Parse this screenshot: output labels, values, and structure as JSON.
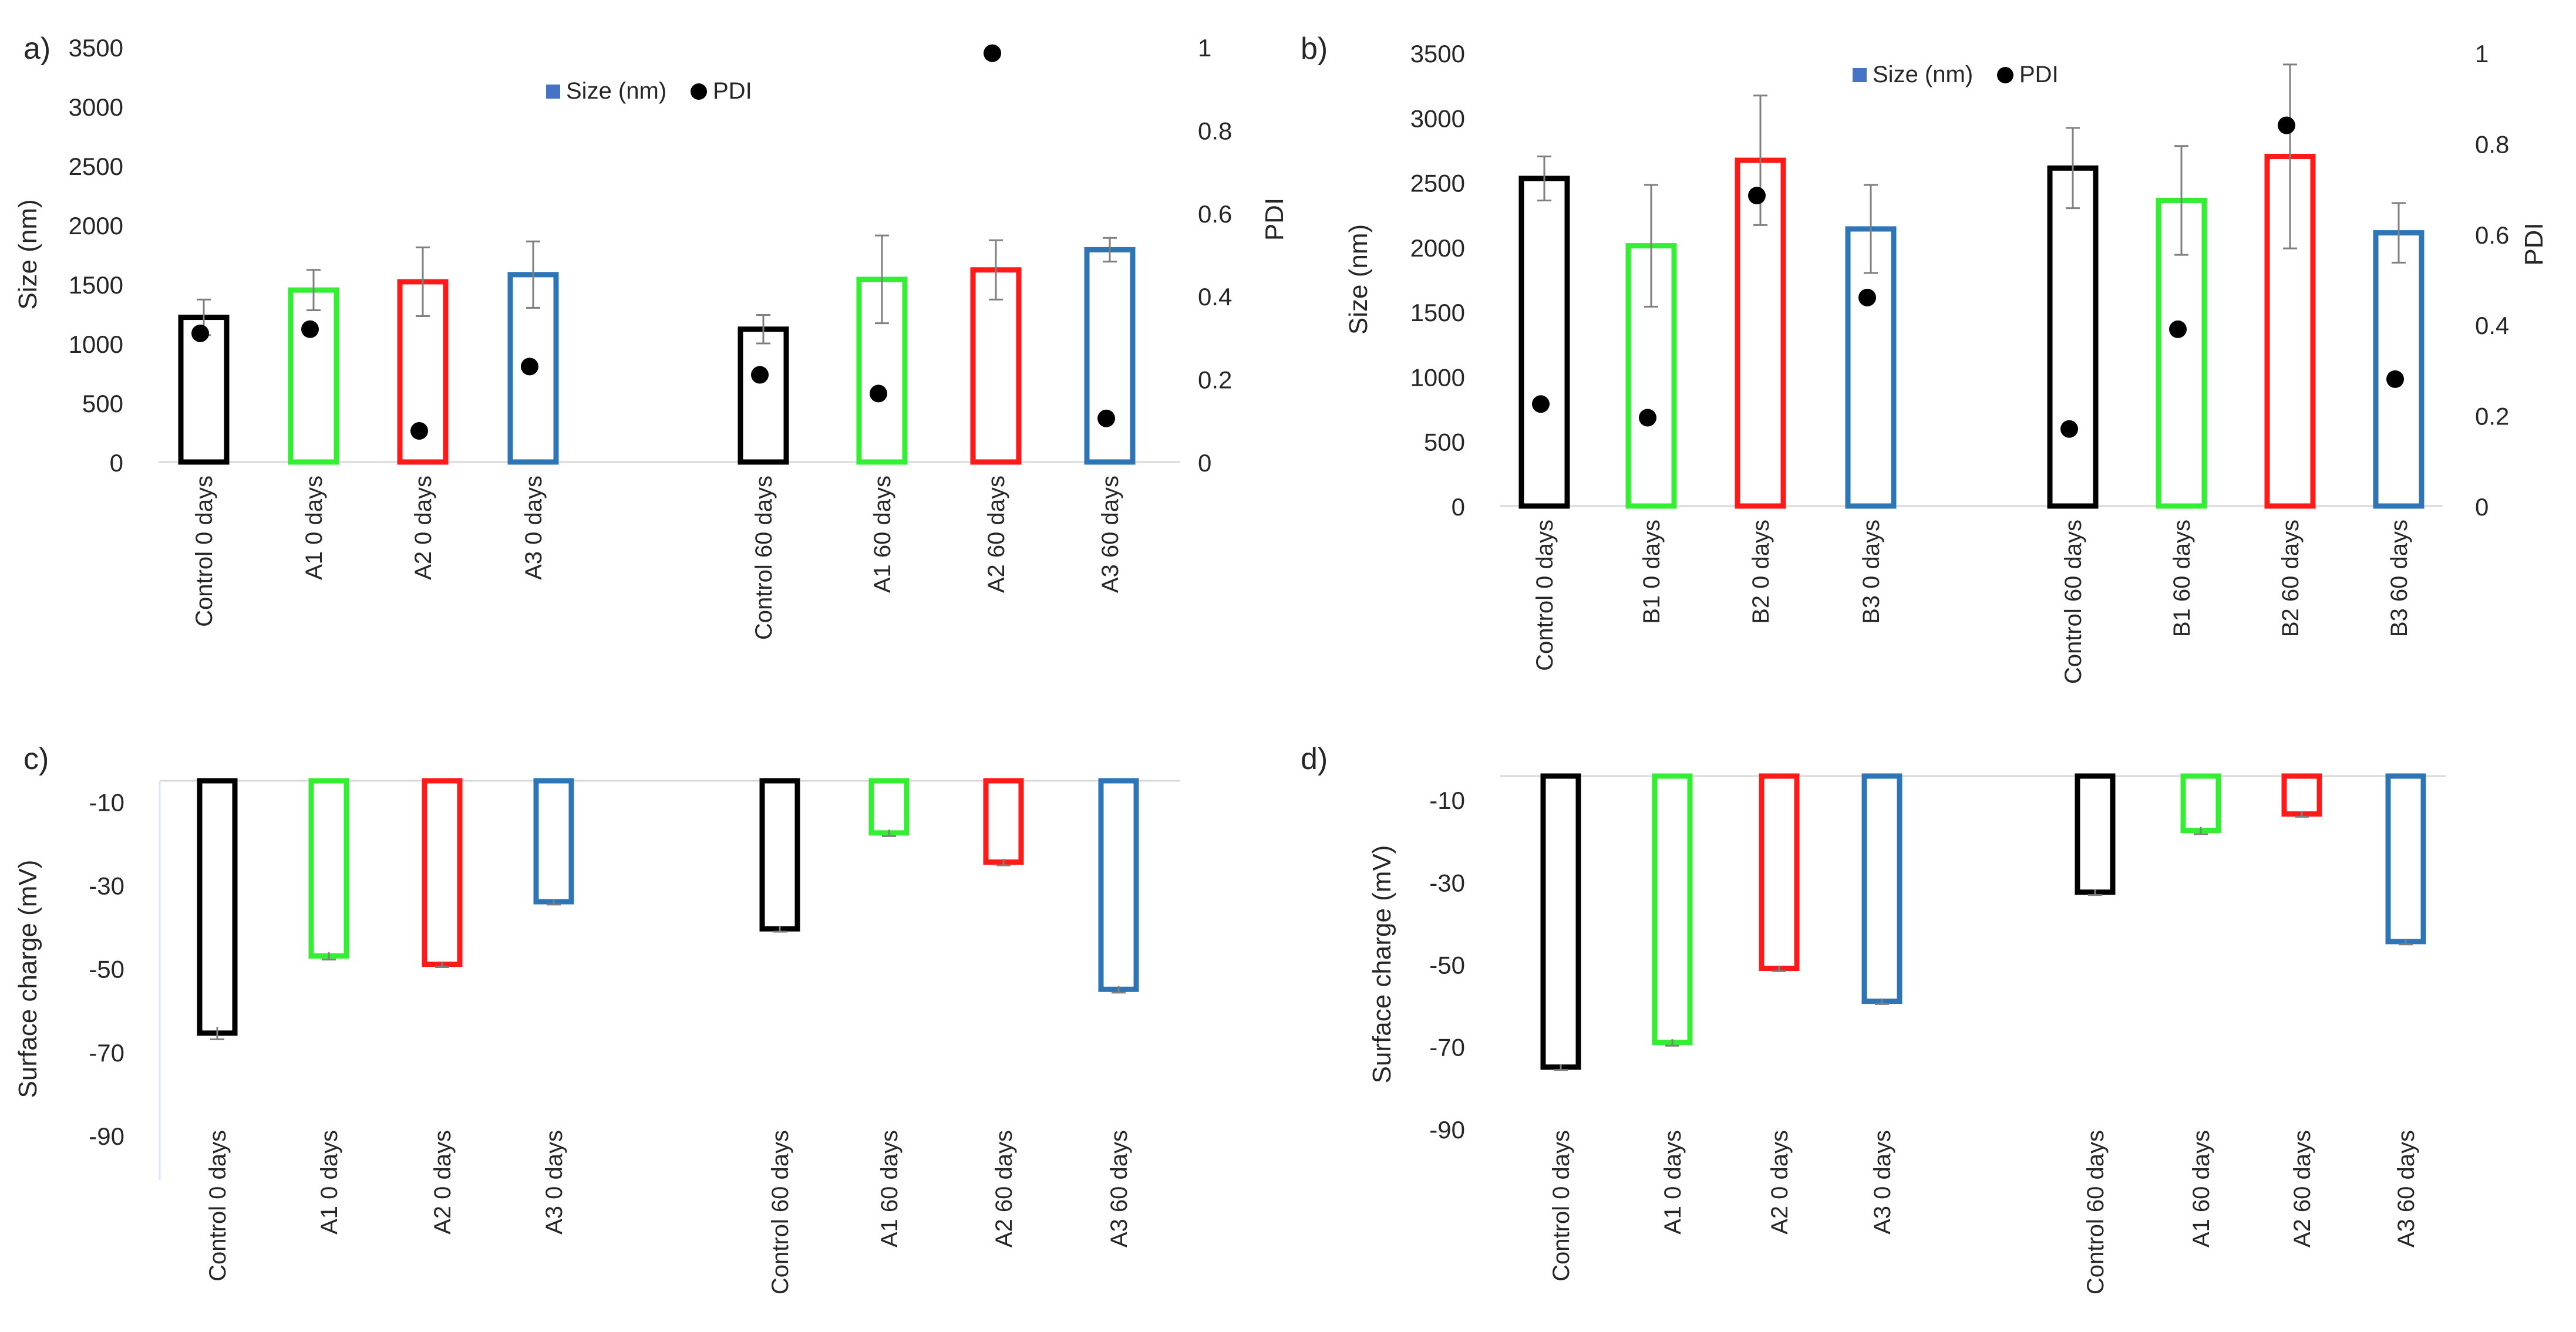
{
  "chart_data": [
    {
      "panel_label": "a)",
      "type": "bar",
      "title": "",
      "xlabel": "",
      "ylabel": "Size (nm)",
      "y2label": "PDI",
      "ylim": [
        0,
        3500
      ],
      "y2lim": [
        0,
        1
      ],
      "yticks": [
        "0",
        "500",
        "1000",
        "1500",
        "2000",
        "2500",
        "3000",
        "3500"
      ],
      "y2ticks": [
        "0",
        "0.2",
        "0.4",
        "0.6",
        "0.8",
        "1"
      ],
      "legend": {
        "position": "top-center",
        "entries": [
          "Size (nm)",
          "PDI"
        ]
      },
      "categories": [
        "Control 0 days",
        "A1 0 days",
        "A2 0  days",
        "A3 0  days",
        "Control 60  days",
        "A1 60  days",
        "A2 60  days",
        "A3 60  days"
      ],
      "colors": [
        "#000000",
        "#33ee33",
        "#ff1a1a",
        "#2e75b6",
        "#000000",
        "#33ee33",
        "#ff1a1a",
        "#2e75b6"
      ],
      "series": [
        {
          "name": "Size (nm)",
          "values": [
            1220,
            1450,
            1520,
            1580,
            1120,
            1540,
            1620,
            1790
          ],
          "errors": [
            150,
            170,
            290,
            280,
            120,
            370,
            250,
            100
          ]
        },
        {
          "name": "PDI",
          "values": [
            0.31,
            0.32,
            0.075,
            0.23,
            0.21,
            0.165,
            0.985,
            0.105
          ]
        }
      ]
    },
    {
      "panel_label": "b)",
      "type": "bar",
      "title": "",
      "xlabel": "",
      "ylabel": "Size (nm)",
      "y2label": "PDI",
      "ylim": [
        0,
        3500
      ],
      "y2lim": [
        0,
        1
      ],
      "yticks": [
        "0",
        "500",
        "1000",
        "1500",
        "2000",
        "2500",
        "3000",
        "3500"
      ],
      "y2ticks": [
        "0",
        "0.2",
        "0.4",
        "0.6",
        "0.8",
        "1"
      ],
      "legend": {
        "position": "top-center",
        "entries": [
          "Size (nm)",
          "PDI"
        ]
      },
      "categories": [
        "Control 0 days",
        "B1 0 days",
        "B2 0 days",
        "B3 0 days",
        "Control 60 days",
        "B1 60 days",
        "B2 60 days",
        "B3 60 days"
      ],
      "colors": [
        "#000000",
        "#33ee33",
        "#ff1a1a",
        "#2e75b6",
        "#000000",
        "#33ee33",
        "#ff1a1a",
        "#2e75b6"
      ],
      "series": [
        {
          "name": "Size (nm)",
          "values": [
            2530,
            2010,
            2670,
            2140,
            2610,
            2360,
            2700,
            2110
          ],
          "errors": [
            170,
            470,
            500,
            340,
            310,
            420,
            710,
            230
          ]
        },
        {
          "name": "PDI",
          "values": [
            0.225,
            0.195,
            0.685,
            0.46,
            0.17,
            0.39,
            0.84,
            0.28
          ]
        }
      ]
    },
    {
      "panel_label": "c)",
      "type": "bar",
      "title": "",
      "xlabel": "",
      "ylabel": "Surface charge (mV)",
      "ylim": [
        -100,
        -5
      ],
      "yticks": [
        "-10",
        "-30",
        "-50",
        "-70",
        "-90"
      ],
      "categories": [
        "Control 0 days",
        "A1 0 days",
        "A2 0  days",
        "A3 0  days",
        "Control 60  days",
        "A1 60  days",
        "A2 60  days",
        "A3 60  days"
      ],
      "colors": [
        "#000000",
        "#33ee33",
        "#ff1a1a",
        "#2e75b6",
        "#000000",
        "#33ee33",
        "#ff1a1a",
        "#2e75b6"
      ],
      "series": [
        {
          "name": "Surface charge (mV)",
          "values": [
            -65.5,
            -47,
            -49,
            -34,
            -40.5,
            -17.5,
            -24.5,
            -55
          ],
          "errors": [
            1.2,
            0.6,
            0.4,
            0.4,
            0.4,
            0.5,
            0.5,
            0.5
          ]
        }
      ]
    },
    {
      "panel_label": "d)",
      "type": "bar",
      "title": "",
      "xlabel": "",
      "ylabel": "Surface charge (mV)",
      "ylim": [
        -96,
        -4
      ],
      "yticks": [
        "-10",
        "-30",
        "-50",
        "-70",
        "-90"
      ],
      "categories": [
        "Control 0 days",
        "A1 0 days",
        "A2 0 days",
        "A3 0 days",
        "Control 60 days",
        "A1 60  days",
        "A2 60 days",
        "A3 60 days"
      ],
      "colors": [
        "#000000",
        "#33ee33",
        "#ff1a1a",
        "#2e75b6",
        "#000000",
        "#33ee33",
        "#ff1a1a",
        "#2e75b6"
      ],
      "series": [
        {
          "name": "Surface charge (mV)",
          "values": [
            -75,
            -69,
            -51,
            -59,
            -32.5,
            -17.5,
            -13.5,
            -44.5
          ],
          "errors": [
            0.4,
            0.5,
            0.4,
            0.4,
            0.4,
            0.6,
            0.4,
            0.4
          ]
        }
      ]
    }
  ]
}
